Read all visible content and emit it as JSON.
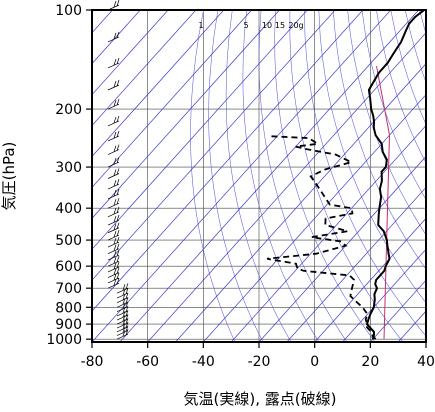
{
  "chart_data": {
    "type": "line",
    "xlabel": "気温(実線), 露点(破線)",
    "ylabel": "気圧(hPa)",
    "xlim": [
      -80,
      40
    ],
    "ylim": [
      1020,
      100
    ],
    "x_ticks": [
      -80,
      -60,
      -40,
      -20,
      0,
      20,
      40
    ],
    "y_ticks": [
      100,
      200,
      300,
      400,
      500,
      600,
      700,
      800,
      900,
      1000
    ],
    "y_scale": "log",
    "grid": true,
    "mixing_ratio_labels": [
      "1",
      "5",
      "10",
      "15",
      "20g"
    ],
    "series": [
      {
        "style": "solid",
        "points": [
          [
            20,
            1000
          ],
          [
            19,
            970
          ],
          [
            18,
            950
          ],
          [
            15,
            920
          ],
          [
            13,
            900
          ],
          [
            12,
            870
          ],
          [
            11,
            840
          ],
          [
            10,
            800
          ],
          [
            9,
            780
          ],
          [
            8,
            760
          ],
          [
            6,
            730
          ],
          [
            5,
            700
          ],
          [
            3,
            680
          ],
          [
            2,
            660
          ],
          [
            2,
            620
          ],
          [
            1,
            600
          ],
          [
            0,
            570
          ],
          [
            -2,
            550
          ],
          [
            -5,
            520
          ],
          [
            -7,
            500
          ],
          [
            -11,
            470
          ],
          [
            -15,
            450
          ],
          [
            -18,
            420
          ],
          [
            -20,
            400
          ],
          [
            -23,
            370
          ],
          [
            -26,
            350
          ],
          [
            -28,
            330
          ],
          [
            -31,
            310
          ],
          [
            -31,
            300
          ],
          [
            -33,
            285
          ],
          [
            -37,
            270
          ],
          [
            -40,
            255
          ],
          [
            -45,
            240
          ],
          [
            -48,
            228
          ],
          [
            -50,
            218
          ],
          [
            -52,
            210
          ],
          [
            -55,
            200
          ],
          [
            -59,
            185
          ],
          [
            -62,
            175
          ],
          [
            -63,
            165
          ],
          [
            -64,
            155
          ],
          [
            -64,
            145
          ],
          [
            -65,
            135
          ],
          [
            -66,
            125
          ],
          [
            -68,
            115
          ],
          [
            -69,
            110
          ],
          [
            -69,
            105
          ],
          [
            -68,
            100
          ]
        ]
      },
      {
        "style": "dashed",
        "points": [
          [
            21,
            1000
          ],
          [
            19,
            980
          ],
          [
            17,
            950
          ],
          [
            14,
            920
          ],
          [
            13,
            900
          ],
          [
            11,
            870
          ],
          [
            10,
            840
          ],
          [
            6,
            800
          ],
          [
            2,
            770
          ],
          [
            -2,
            740
          ],
          [
            -4,
            700
          ],
          [
            -6,
            660
          ],
          [
            -9,
            640
          ],
          [
            -18,
            630
          ],
          [
            -27,
            620
          ],
          [
            -30,
            610
          ],
          [
            -32,
            590
          ],
          [
            -44,
            570
          ],
          [
            -28,
            550
          ],
          [
            -20,
            520
          ],
          [
            -23,
            505
          ],
          [
            -35,
            490
          ],
          [
            -24,
            470
          ],
          [
            -34,
            450
          ],
          [
            -36,
            430
          ],
          [
            -28,
            415
          ],
          [
            -30,
            400
          ],
          [
            -39,
            390
          ],
          [
            -50,
            340
          ],
          [
            -55,
            320
          ],
          [
            -52,
            305
          ],
          [
            -45,
            290
          ],
          [
            -53,
            275
          ],
          [
            -65,
            265
          ],
          [
            -70,
            260
          ],
          [
            -63,
            255
          ],
          [
            -68,
            245
          ],
          [
            -82,
            242
          ]
        ]
      }
    ],
    "annotations": [
      "wind barbs along left axis"
    ]
  }
}
